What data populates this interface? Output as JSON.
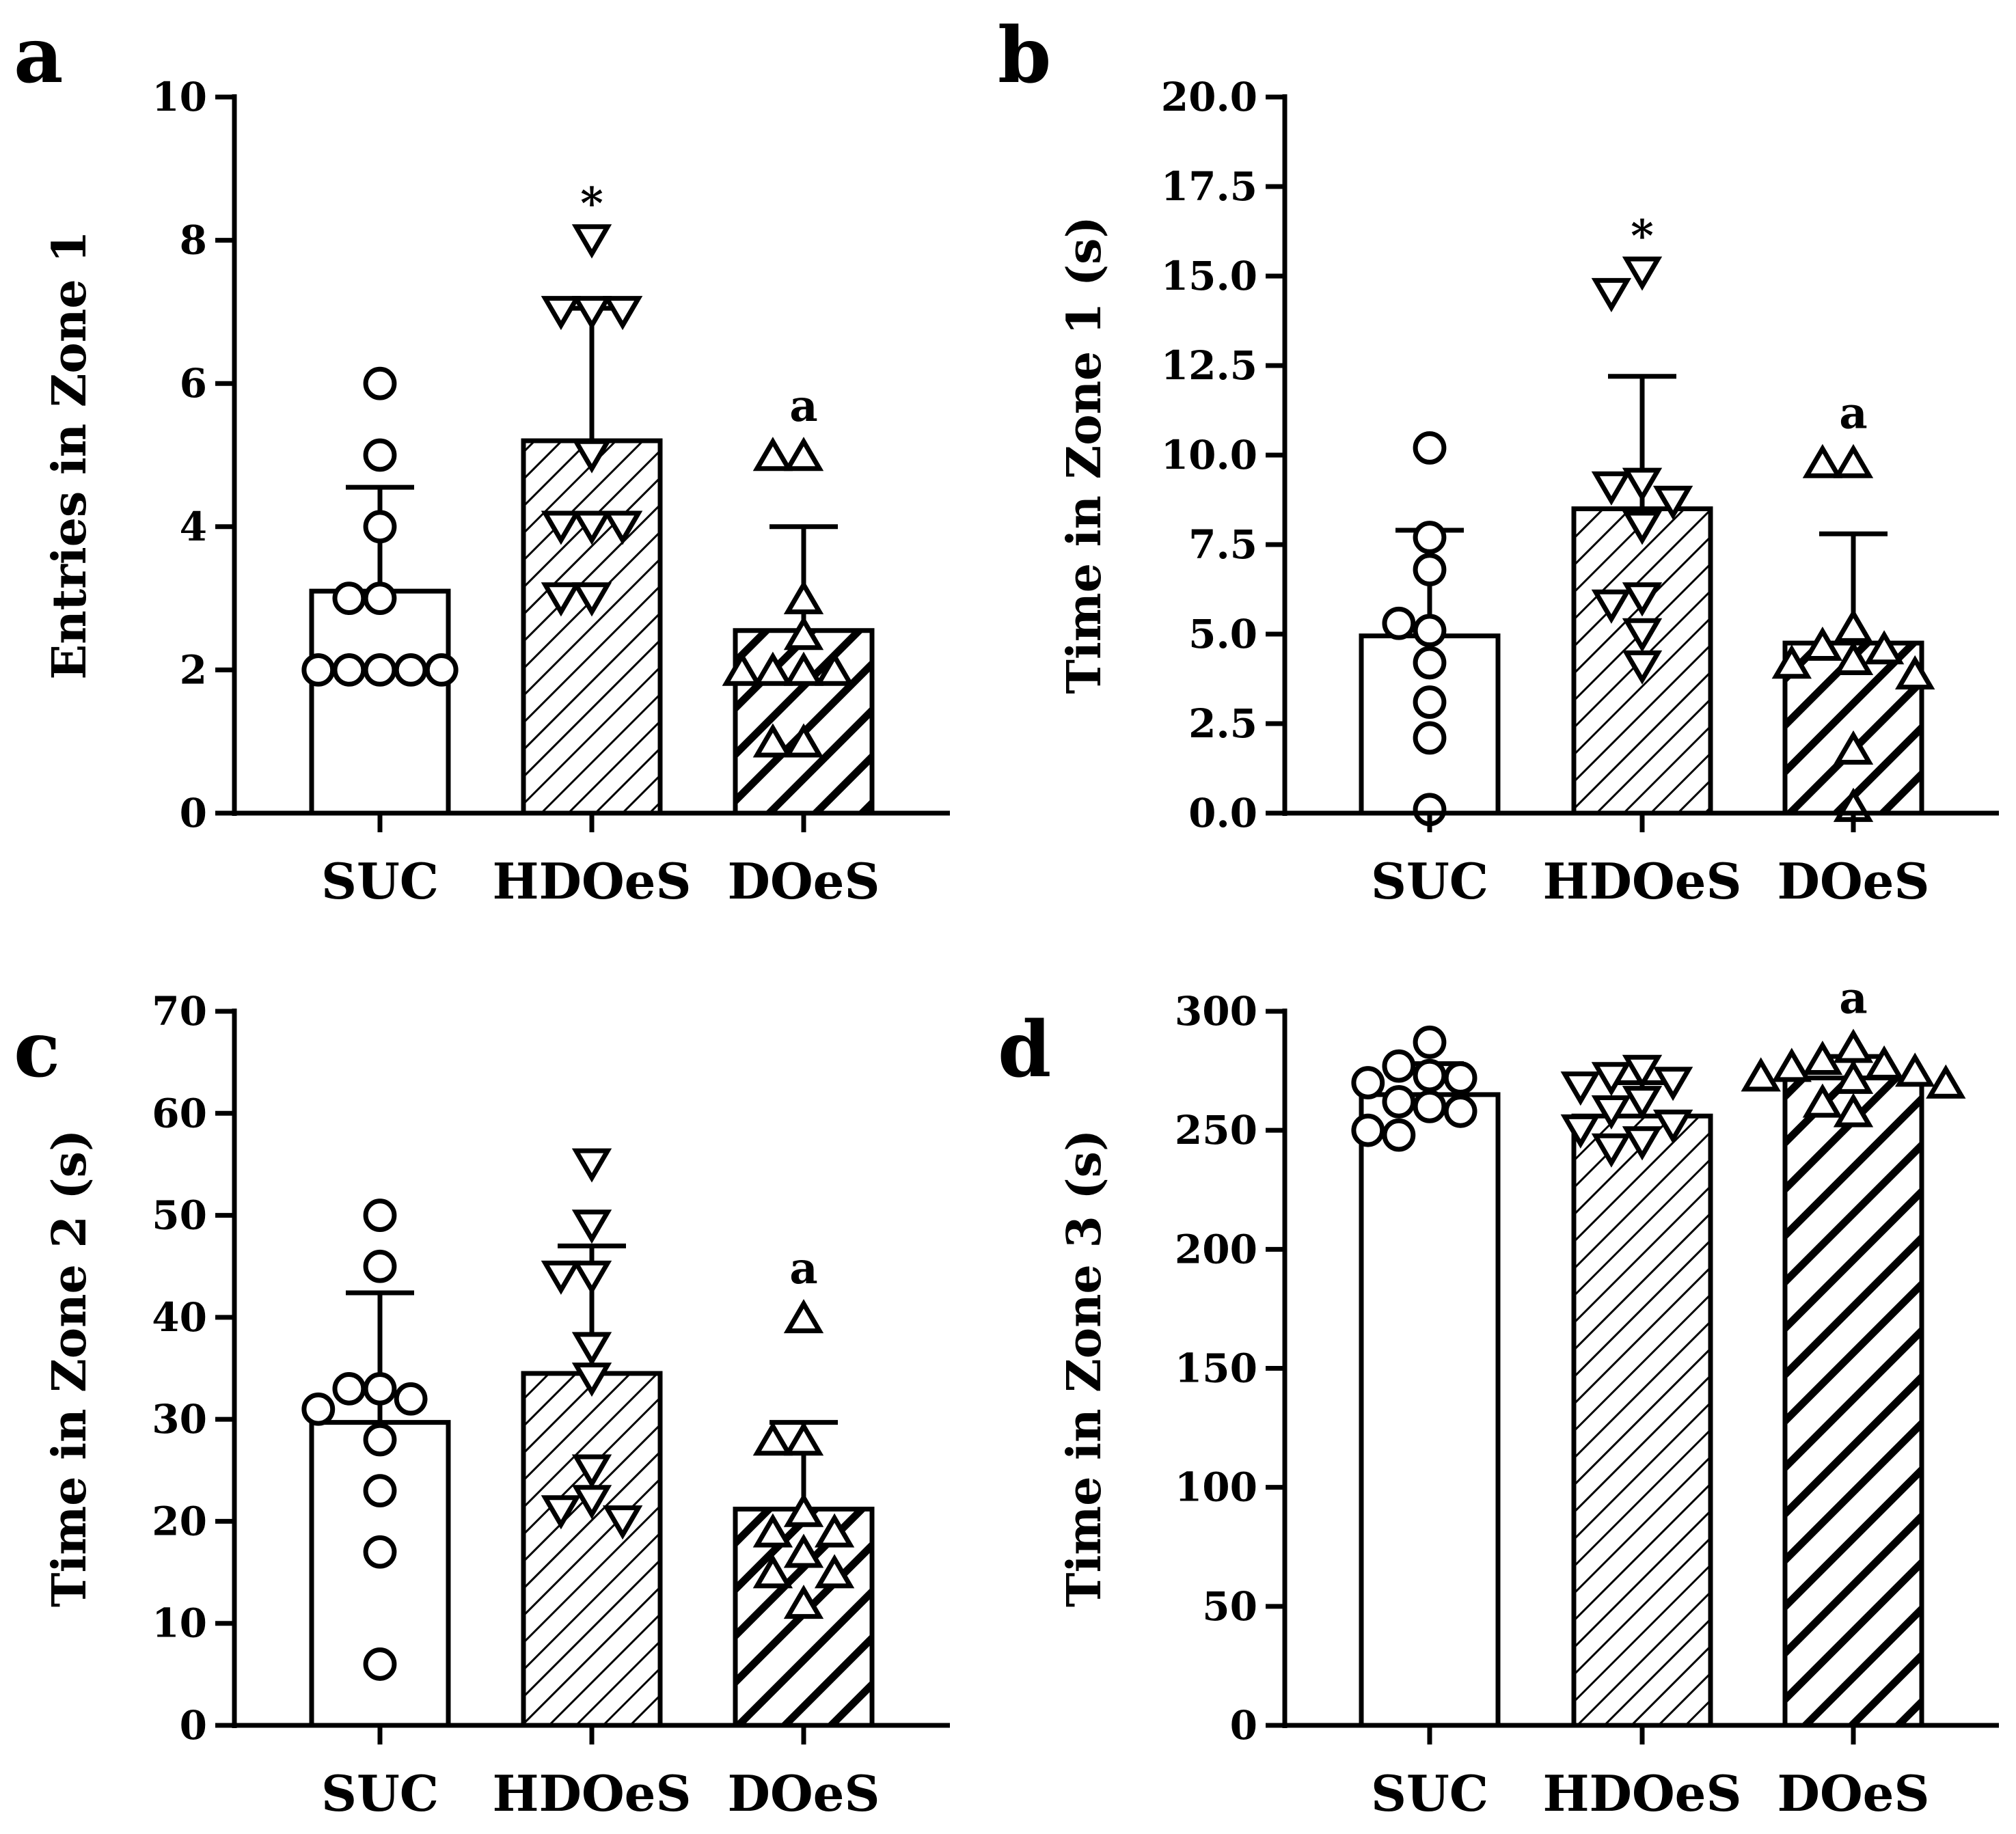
{
  "chart_data": [
    {
      "type": "bar",
      "panel": "a",
      "ylabel": "Entries in Zone 1",
      "ylim": [
        0,
        10
      ],
      "yticks": [
        0,
        2,
        4,
        6,
        8,
        10
      ],
      "ytick_labels": [
        "0",
        "2",
        "4",
        "6",
        "8",
        "10"
      ],
      "categories": [
        "SUC",
        "HDOeS",
        "DOeS"
      ],
      "values": [
        3.1,
        5.2,
        2.55
      ],
      "errors": [
        1.45,
        1.85,
        1.45
      ],
      "markers": [
        "circle",
        "triangle-down",
        "triangle-up"
      ],
      "fills": [
        "none",
        "light-hatch",
        "heavy-hatch"
      ],
      "annotations": [
        "",
        "*",
        "a"
      ],
      "points": [
        [
          6,
          5,
          4,
          3,
          3,
          2,
          2,
          2,
          2,
          2
        ],
        [
          8,
          7,
          7,
          7,
          5,
          4,
          4,
          4,
          3,
          3
        ],
        [
          5,
          5,
          3,
          2.5,
          2,
          2,
          2,
          2,
          1,
          1
        ]
      ]
    },
    {
      "type": "bar",
      "panel": "b",
      "ylabel": "Time in Zone 1 (s)",
      "ylim": [
        0,
        20
      ],
      "yticks": [
        0,
        2.5,
        5,
        7.5,
        10,
        12.5,
        15,
        17.5,
        20
      ],
      "ytick_labels": [
        "0.0",
        "2.5",
        "5.0",
        "7.5",
        "10.0",
        "12.5",
        "15.0",
        "17.5",
        "20.0"
      ],
      "categories": [
        "SUC",
        "HDOeS",
        "DOeS"
      ],
      "values": [
        4.95,
        8.5,
        4.75
      ],
      "errors": [
        2.95,
        3.7,
        3.05
      ],
      "markers": [
        "circle",
        "triangle-down",
        "triangle-up"
      ],
      "fills": [
        "none",
        "light-hatch",
        "heavy-hatch"
      ],
      "annotations": [
        "",
        "*",
        "a"
      ],
      "points": [
        [
          10.2,
          7.7,
          6.8,
          5.1,
          5.3,
          4.2,
          3.1,
          2.1,
          0.1
        ],
        [
          15.1,
          14.5,
          9.2,
          9.1,
          8.7,
          8.0,
          6.0,
          5.8,
          5.0,
          4.1
        ],
        [
          9.8,
          9.8,
          5.2,
          4.7,
          4.6,
          4.3,
          4.2,
          3.9,
          1.8,
          0.2
        ]
      ]
    },
    {
      "type": "bar",
      "panel": "c",
      "ylabel": "Time in Zone 2 (s)",
      "ylim": [
        0,
        70
      ],
      "yticks": [
        0,
        10,
        20,
        30,
        40,
        50,
        60,
        70
      ],
      "ytick_labels": [
        "0",
        "10",
        "20",
        "30",
        "40",
        "50",
        "60",
        "70"
      ],
      "categories": [
        "SUC",
        "HDOeS",
        "DOeS"
      ],
      "values": [
        29.7,
        34.5,
        21.2
      ],
      "errors": [
        12.7,
        12.5,
        8.5
      ],
      "markers": [
        "circle",
        "triangle-down",
        "triangle-up"
      ],
      "fills": [
        "none",
        "light-hatch",
        "heavy-hatch"
      ],
      "annotations": [
        "",
        "",
        "a"
      ],
      "points": [
        [
          50,
          45,
          33,
          33,
          32,
          31,
          28,
          23,
          17,
          6
        ],
        [
          55,
          49,
          44,
          44,
          37,
          34,
          25,
          22,
          21,
          20
        ],
        [
          40,
          28,
          28,
          21,
          19,
          19,
          17,
          15,
          15,
          12
        ]
      ]
    },
    {
      "type": "bar",
      "panel": "d",
      "ylabel": "Time in Zone 3 (s)",
      "ylim": [
        0,
        300
      ],
      "yticks": [
        0,
        50,
        100,
        150,
        200,
        250,
        300
      ],
      "ytick_labels": [
        "0",
        "50",
        "100",
        "150",
        "200",
        "250",
        "300"
      ],
      "categories": [
        "SUC",
        "HDOeS",
        "DOeS"
      ],
      "values": [
        265,
        256,
        272
      ],
      "errors": [
        13,
        14,
        9
      ],
      "markers": [
        "circle",
        "triangle-down",
        "triangle-up"
      ],
      "fills": [
        "none",
        "light-hatch",
        "heavy-hatch"
      ],
      "annotations": [
        "",
        "",
        "a"
      ],
      "points": [
        [
          287,
          277,
          273,
          272,
          270,
          262,
          260,
          258,
          250,
          248
        ],
        [
          275,
          272,
          270,
          268,
          262,
          258,
          252,
          250,
          245,
          242
        ],
        [
          285,
          280,
          278,
          277,
          275,
          273,
          272,
          270,
          262,
          258
        ]
      ]
    }
  ]
}
